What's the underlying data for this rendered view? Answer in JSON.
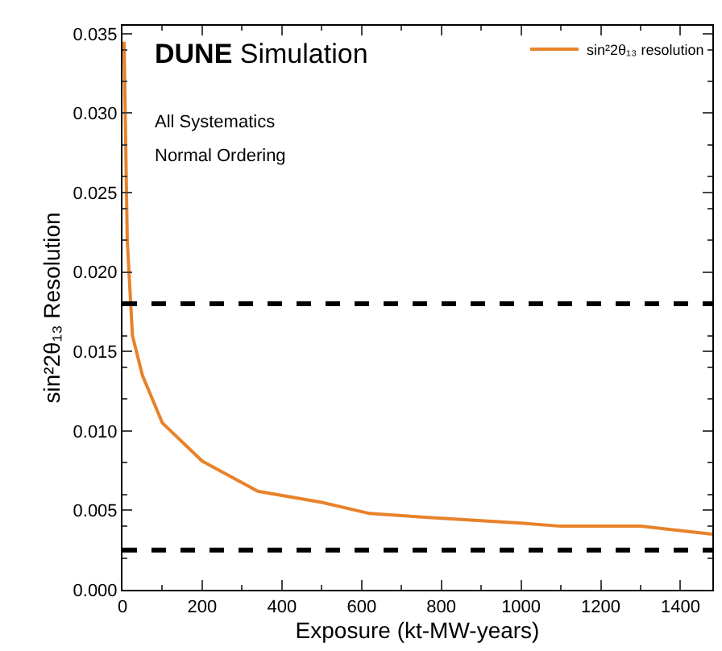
{
  "chart_data": {
    "type": "line",
    "xlabel": "Exposure (kt-MW-years)",
    "ylabel": "sin²2θ₁₃ Resolution",
    "annotations": [
      "DUNE Simulation",
      "All Systematics",
      "Normal Ordering"
    ],
    "x": [
      4,
      12,
      25,
      50,
      100,
      200,
      340,
      500,
      620,
      800,
      1000,
      1100,
      1300,
      1480
    ],
    "series": [
      {
        "name": "sin²2θ₁₃ resolution",
        "color": "#e8822a",
        "values": [
          0.0345,
          0.022,
          0.016,
          0.0135,
          0.0105,
          0.0081,
          0.0062,
          0.0055,
          0.0048,
          0.0045,
          0.0042,
          0.004,
          0.004,
          0.0035
        ]
      }
    ],
    "xlim": [
      0,
      1480
    ],
    "xticks": [
      0,
      200,
      400,
      600,
      800,
      1000,
      1200,
      1400
    ],
    "ylim": [
      0,
      0.0355
    ],
    "yticks": [
      {
        "value": 0,
        "label": "0.000"
      },
      {
        "value": 0.005,
        "label": "0.005"
      },
      {
        "value": 0.01,
        "label": "0.010"
      },
      {
        "value": 0.015,
        "label": "0.015"
      },
      {
        "value": 0.02,
        "label": "0.020"
      },
      {
        "value": 0.025,
        "label": "0.025"
      },
      {
        "value": 0.03,
        "label": "0.030"
      },
      {
        "value": 0.035,
        "label": "0.035"
      }
    ],
    "ref_lines": [
      {
        "axis": "y",
        "value": 0.018,
        "color": "#000000",
        "line_style": "dashed"
      },
      {
        "axis": "y",
        "value": 0.0025,
        "color": "#000000",
        "line_style": "dashed"
      }
    ],
    "legend": "top right",
    "marker": "none",
    "line_style": "solid"
  }
}
